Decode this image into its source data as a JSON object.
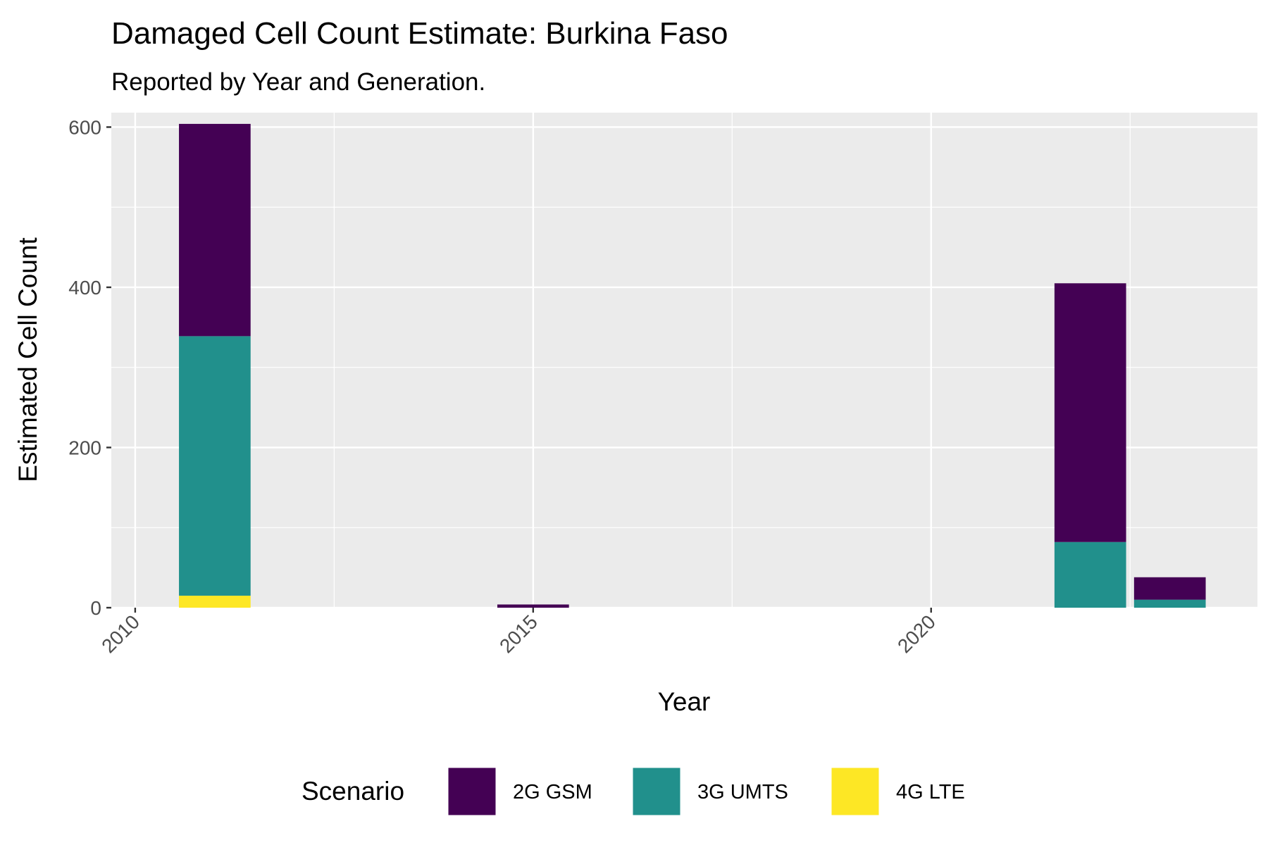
{
  "chart_data": {
    "type": "bar",
    "stacked": true,
    "title": "Damaged Cell Count Estimate: Burkina Faso",
    "subtitle": "Reported by Year and Generation.",
    "xlabel": "Year",
    "ylabel": "Estimated Cell Count",
    "x_ticks": [
      2010,
      2015,
      2020
    ],
    "y_ticks": [
      0,
      200,
      400,
      600
    ],
    "xlim": [
      2009.7,
      2024.1
    ],
    "ylim": [
      0,
      618
    ],
    "grid": true,
    "legend": {
      "title": "Scenario",
      "position": "bottom",
      "entries": [
        "2G GSM",
        "3G UMTS",
        "4G LTE"
      ]
    },
    "bar_width_years": 0.9,
    "series": [
      {
        "name": "2G GSM",
        "color": "#440154",
        "values": [
          265,
          4,
          323,
          28
        ]
      },
      {
        "name": "3G UMTS",
        "color": "#21908C",
        "values": [
          324,
          0,
          82,
          10
        ]
      },
      {
        "name": "4G LTE",
        "color": "#FDE725",
        "values": [
          15,
          0,
          0,
          0
        ]
      }
    ],
    "x": [
      2011,
      2015,
      2022,
      2023
    ]
  }
}
